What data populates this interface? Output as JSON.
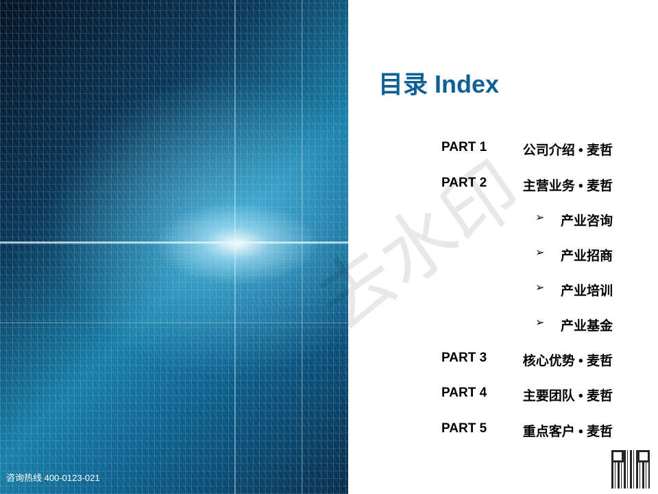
{
  "footer": {
    "hotline": "咨询热线 400-0123-021"
  },
  "watermark": "去水印",
  "title": "目录 Index",
  "toc": [
    {
      "part": "PART 1",
      "name": "公司介绍 • 麦哲"
    },
    {
      "part": "PART 2",
      "name": "主营业务 • 麦哲"
    },
    {
      "sub": "产业咨询",
      "icon": "arrow-bullet-icon"
    },
    {
      "sub": "产业招商",
      "icon": "arrow-bullet-icon"
    },
    {
      "sub": "产业培训",
      "icon": "arrow-bullet-icon"
    },
    {
      "sub": "产业基金",
      "icon": "arrow-bullet-icon"
    },
    {
      "part": "PART 3",
      "name": "核心优势 • 麦哲"
    },
    {
      "part": "PART 4",
      "name": "主要团队 • 麦哲"
    },
    {
      "part": "PART 5",
      "name": "重点客户 • 麦哲"
    }
  ],
  "colors": {
    "title": "#0e6196",
    "text": "#000000"
  },
  "arrow_glyph": "➢"
}
